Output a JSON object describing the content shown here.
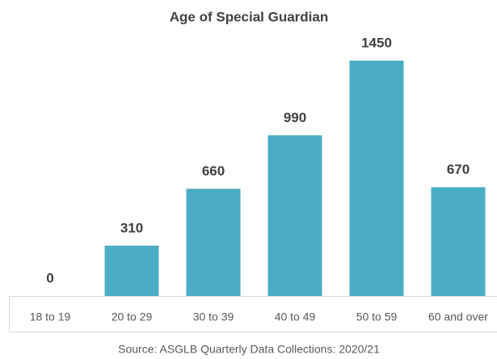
{
  "chart_data": {
    "type": "bar",
    "title": "Age of Special Guardian",
    "categories": [
      "18 to 19",
      "20 to 29",
      "30 to 39",
      "40 to 49",
      "50 to 59",
      "60 and over"
    ],
    "values": [
      0,
      310,
      660,
      990,
      1450,
      670
    ],
    "color": "#4bacc6",
    "note": "Source: ASGLB Quarterly Data Collections: 2020/21"
  }
}
